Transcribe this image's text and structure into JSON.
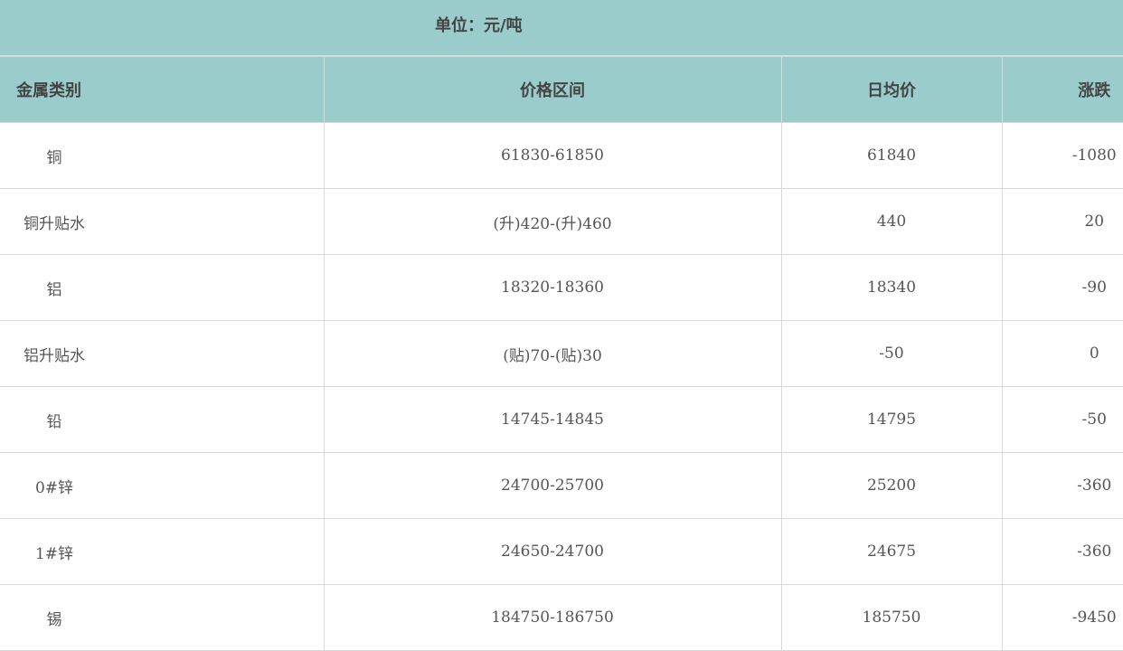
{
  "unit_title": "单位：元/吨",
  "headers": [
    "金属类别",
    "价格区间",
    "日均价",
    "涨跌"
  ],
  "rows": [
    {
      "metal": "铜",
      "range": "61830-61850",
      "avg": "61840",
      "change": "-1080"
    },
    {
      "metal": "铜升贴水",
      "range": "(升)420-(升)460",
      "avg": "440",
      "change": "20"
    },
    {
      "metal": "铝",
      "range": "18320-18360",
      "avg": "18340",
      "change": "-90"
    },
    {
      "metal": "铝升贴水",
      "range": "(贴)70-(贴)30",
      "avg": "-50",
      "change": "0"
    },
    {
      "metal": "铅",
      "range": "14745-14845",
      "avg": "14795",
      "change": "-50"
    },
    {
      "metal": "0#锌",
      "range": "24700-25700",
      "avg": "25200",
      "change": "-360"
    },
    {
      "metal": "1#锌",
      "range": "24650-24700",
      "avg": "24675",
      "change": "-360"
    },
    {
      "metal": "锡",
      "range": "184750-186750",
      "avg": "185750",
      "change": "-9450"
    }
  ],
  "colors": {
    "header_bg": "#9ACCCC",
    "text": "#555555",
    "border": "#D8D8D8"
  }
}
